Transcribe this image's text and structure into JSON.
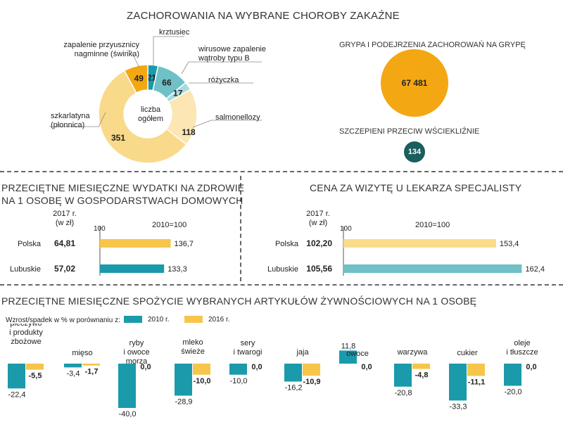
{
  "section1": {
    "title": "ZACHOROWANIA NA WYBRANE CHOROBY ZAKAŹNE",
    "donut_center": [
      "liczba",
      "ogółem"
    ],
    "donut_labels": {
      "krztusiec": "krztusiec",
      "swinka": [
        "zapalenie przyusznicy",
        "nagminne (świnka)"
      ],
      "wzw": [
        "wirusowe zapalenie",
        "wątroby typu B"
      ],
      "rozyczka": "różyczka",
      "salmonellozy": "salmonellozy",
      "szkarlatyna": [
        "szkarlatyna",
        "(płonnica)"
      ]
    },
    "grypa_title": "GRYPA I PODEJRZENIA ZACHOROWAŃ NA GRYPĘ",
    "grypa_value": "67 481",
    "wscieklizna_title": "SZCZEPIENI PRZECIW WŚCIEKLIŹNIE",
    "wscieklizna_value": "134"
  },
  "section2": {
    "title_line1": "PRZECIĘTNE MIESIĘCZNE WYDATKI NA ZDROWIE",
    "title_line2": "NA 1 OSOBĘ W GOSPODARSTWACH DOMOWYCH",
    "col_header": [
      "2017 r.",
      "(w zł)"
    ],
    "axis_start": "100",
    "axis_note": "2010=100"
  },
  "section3": {
    "title": "CENA ZA WIZYTĘ U LEKARZA SPECJALISTY",
    "col_header": [
      "2017 r.",
      "(w zł)"
    ],
    "axis_start": "100",
    "axis_note": "2010=100"
  },
  "section4": {
    "title": "PRZECIĘTNE MIESIĘCZNE SPOŻYCIE WYBRANYCH ARTYKUŁÓW ŻYWNOŚCIOWYCH NA 1 OSOBĘ",
    "legend_prefix": "Wzrost/spadek w % w porównaniu z:"
  },
  "colors": {
    "orange": "#f3a712",
    "yellow": "#f6c54a",
    "pale_yellow": "#f9dc8a",
    "teal": "#1a9aab",
    "teal_light": "#6fc0c7",
    "dark_teal": "#1b5e5e"
  },
  "chart_data": [
    {
      "type": "pie",
      "title": "ZACHOROWANIA NA WYBRANE CHOROBY ZAKAŹNE",
      "categories": [
        "krztusiec",
        "wirusowe zapalenie wątroby typu B",
        "różyczka",
        "salmonellozy",
        "szkarlatyna (płonnica)",
        "zapalenie przyusznicy nagminne (świnka)"
      ],
      "values": [
        21,
        66,
        17,
        118,
        351,
        49
      ],
      "value_labels": [
        "21",
        "66",
        "17",
        "118",
        "351",
        "49"
      ],
      "colors": [
        "#1a9aab",
        "#6fc0c7",
        "#a8dbe0",
        "#fbe6b4",
        "#f9d98a",
        "#f3a712"
      ]
    },
    {
      "type": "bar",
      "title": "PRZECIĘTNE MIESIĘCZNE WYDATKI NA ZDROWIE NA 1 OSOBĘ W GOSPODARSTWACH DOMOWYCH",
      "categories": [
        "Polska",
        "Lubuskie"
      ],
      "values_2017": [
        "64,81",
        "57,02"
      ],
      "index": [
        136.7,
        133.3
      ],
      "index_labels": [
        "136,7",
        "133,3"
      ],
      "colors": [
        "#f6c54a",
        "#1a9aab"
      ],
      "xlim": [
        100,
        165
      ]
    },
    {
      "type": "bar",
      "title": "CENA ZA WIZYTĘ U LEKARZA SPECJALISTY",
      "categories": [
        "Polska",
        "Lubuskie"
      ],
      "values_2017": [
        "102,20",
        "105,56"
      ],
      "index": [
        153.4,
        162.4
      ],
      "index_labels": [
        "153,4",
        "162,4"
      ],
      "colors": [
        "#f9dc8a",
        "#6fc0c7"
      ],
      "xlim": [
        100,
        165
      ]
    },
    {
      "type": "bar",
      "title": "PRZECIĘTNE MIESIĘCZNE SPOŻYCIE WYBRANYCH ARTYKUŁÓW ŻYWNOŚCIOWYCH NA 1 OSOBĘ",
      "categories": [
        [
          "pieczywo",
          "i produkty",
          "zbożowe"
        ],
        [
          "mięso"
        ],
        [
          "ryby",
          "i owoce",
          "morza"
        ],
        [
          "mleko",
          "świeże"
        ],
        [
          "sery",
          "i twarogi"
        ],
        [
          "jaja"
        ],
        [
          "owoce"
        ],
        [
          "warzywa"
        ],
        [
          "cukier"
        ],
        [
          "oleje",
          "i tłuszcze"
        ]
      ],
      "series": [
        {
          "name": "2010 r.",
          "color": "#1a9aab",
          "values": [
            -22.4,
            -3.4,
            -40.0,
            -28.9,
            -10.0,
            -16.2,
            11.8,
            -20.8,
            -33.3,
            -20.0
          ],
          "labels": [
            "-22,4",
            "-3,4",
            "-40,0",
            "-28,9",
            "-10,0",
            "-16,2",
            "11,8",
            "-20,8",
            "-33,3",
            "-20,0"
          ]
        },
        {
          "name": "2016 r.",
          "color": "#f6c54a",
          "values": [
            -5.5,
            -1.7,
            0.0,
            -10.0,
            0.0,
            -10.9,
            0.0,
            -4.8,
            -11.1,
            0.0
          ],
          "labels": [
            "-5,5",
            "-1,7",
            "0,0",
            "-10,0",
            "0,0",
            "-10,9",
            "0,0",
            "-4,8",
            "-11,1",
            "0,0"
          ]
        }
      ],
      "ylim": [
        -40,
        12
      ]
    }
  ]
}
